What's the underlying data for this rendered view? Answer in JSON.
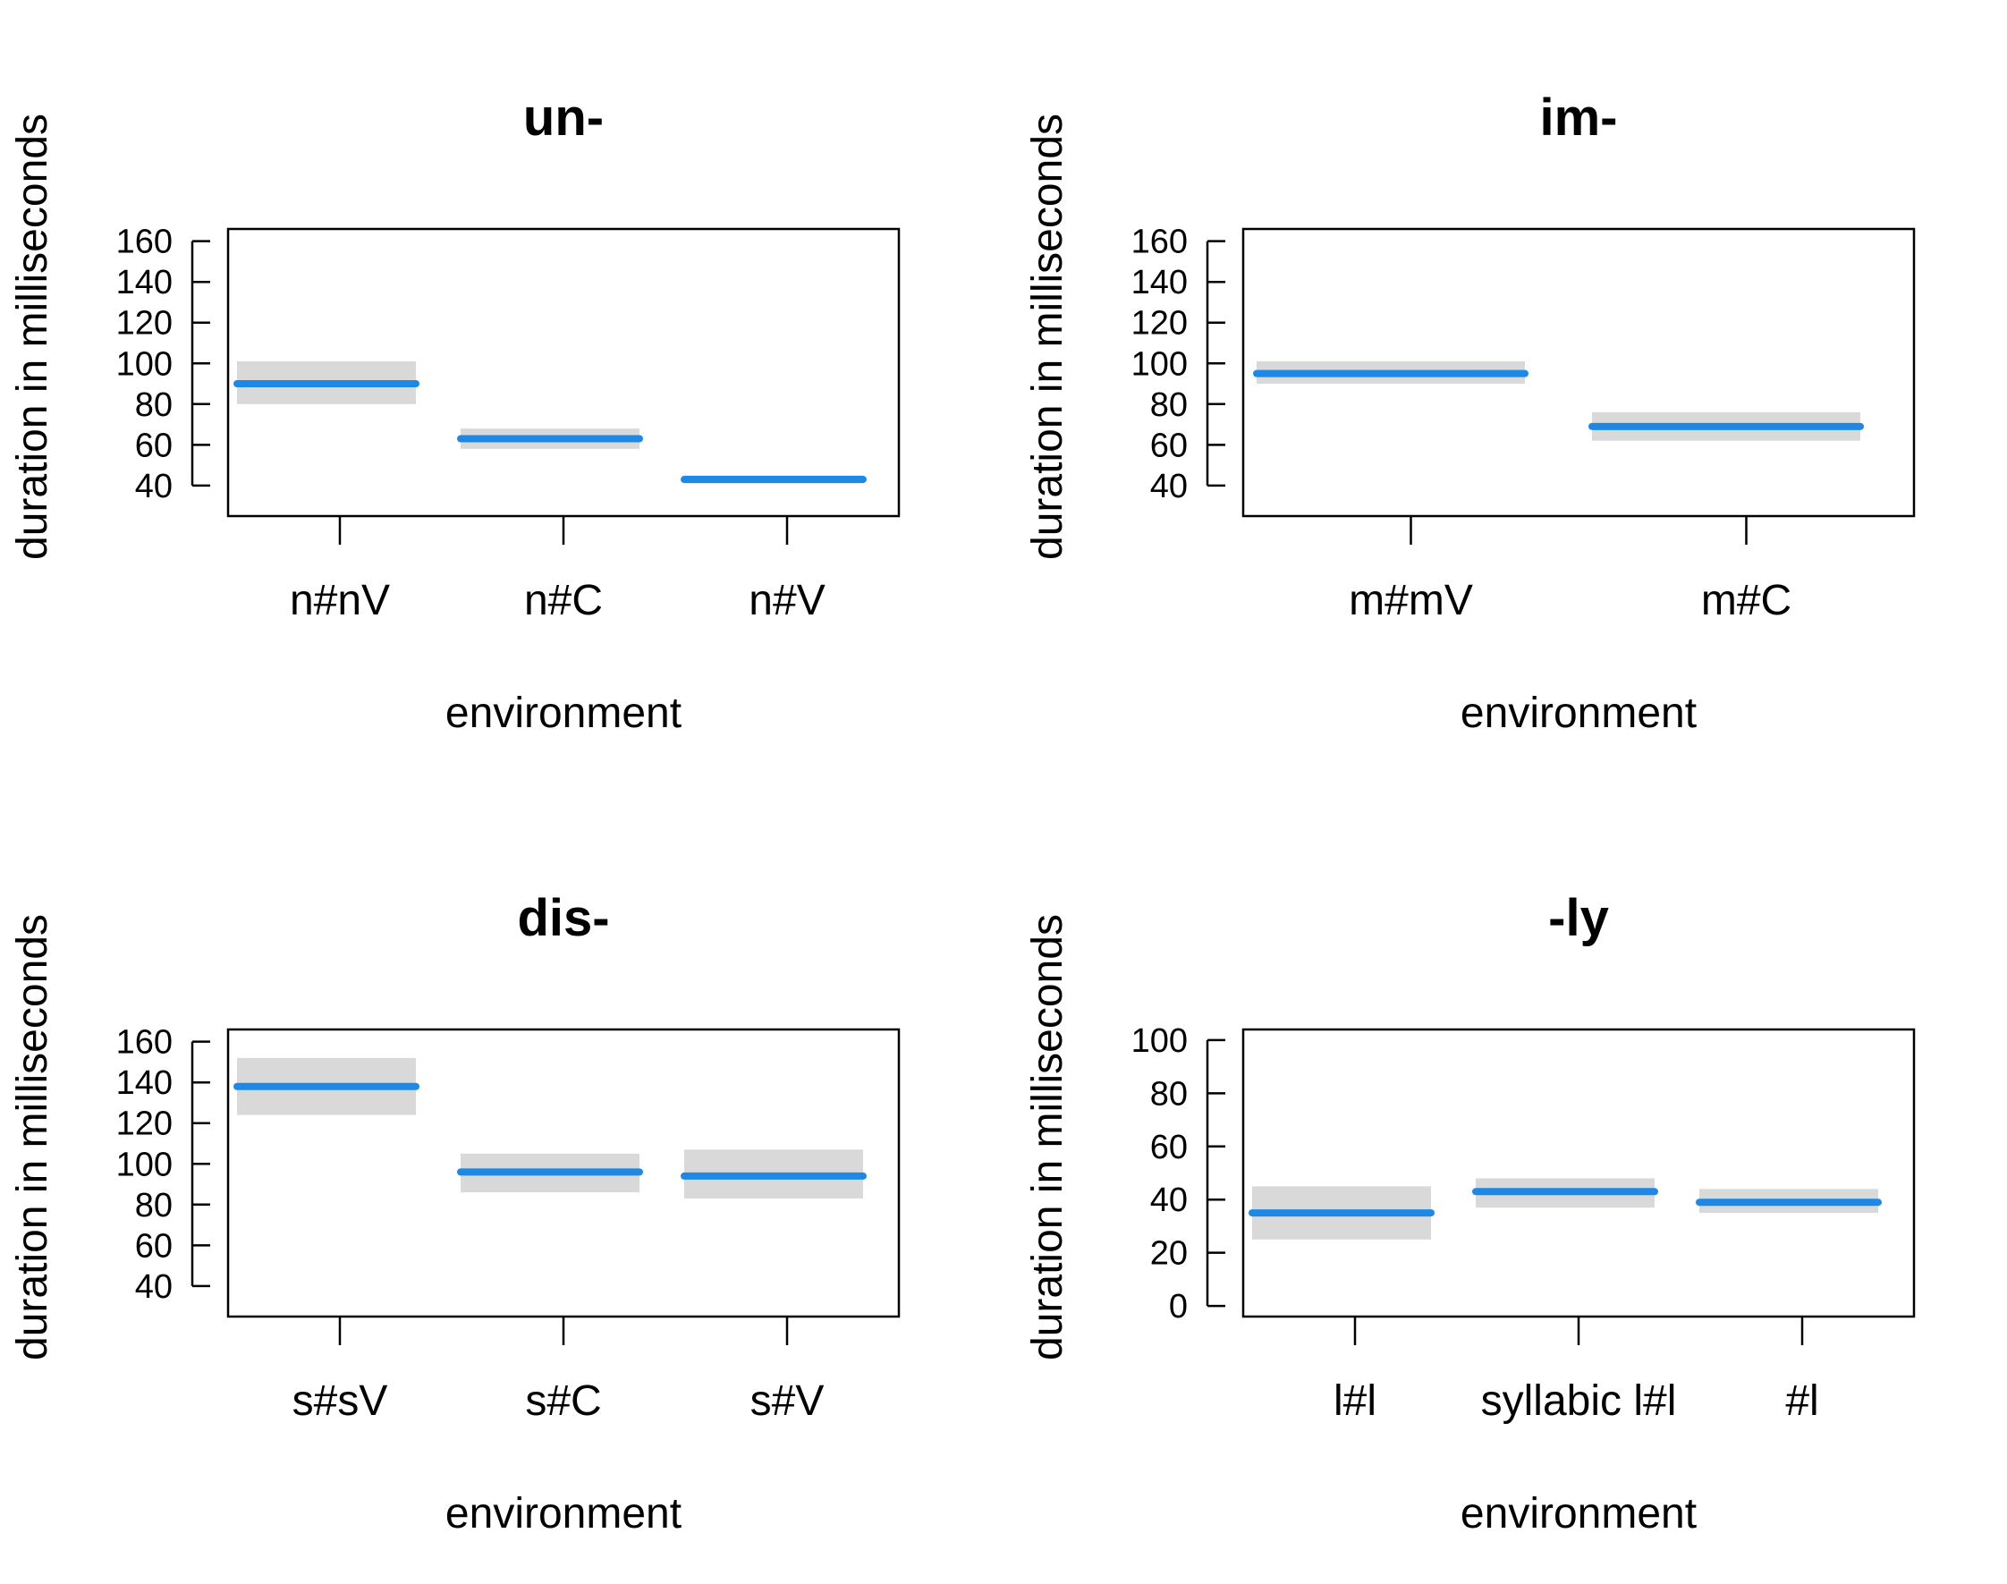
{
  "chart_data": [
    {
      "type": "bar",
      "title": "un-",
      "xlabel": "environment",
      "ylabel": "duration in milliseconds",
      "ylim": [
        25,
        166
      ],
      "yticks": [
        40,
        60,
        80,
        100,
        120,
        140,
        160
      ],
      "categories": [
        "n#nV",
        "n#C",
        "n#V"
      ],
      "values": [
        90,
        63,
        43
      ],
      "ci_lower": [
        80,
        58,
        41
      ],
      "ci_upper": [
        101,
        68,
        45
      ],
      "colors": {
        "estimate": "#1e88e5",
        "ci": "#d9d9d9"
      }
    },
    {
      "type": "bar",
      "title": "im-",
      "xlabel": "environment",
      "ylabel": "duration in milliseconds",
      "ylim": [
        25,
        166
      ],
      "yticks": [
        40,
        60,
        80,
        100,
        120,
        140,
        160
      ],
      "categories": [
        "m#mV",
        "m#C"
      ],
      "values": [
        95,
        69
      ],
      "ci_lower": [
        90,
        62
      ],
      "ci_upper": [
        101,
        76
      ],
      "colors": {
        "estimate": "#1e88e5",
        "ci": "#d9d9d9"
      }
    },
    {
      "type": "bar",
      "title": "dis-",
      "xlabel": "environment",
      "ylabel": "duration in milliseconds",
      "ylim": [
        25,
        166
      ],
      "yticks": [
        40,
        60,
        80,
        100,
        120,
        140,
        160
      ],
      "categories": [
        "s#sV",
        "s#C",
        "s#V"
      ],
      "values": [
        138,
        96,
        94
      ],
      "ci_lower": [
        124,
        86,
        83
      ],
      "ci_upper": [
        152,
        105,
        107
      ],
      "colors": {
        "estimate": "#1e88e5",
        "ci": "#d9d9d9"
      }
    },
    {
      "type": "bar",
      "title": "-ly",
      "xlabel": "environment",
      "ylabel": "duration in milliseconds",
      "ylim": [
        -4,
        104
      ],
      "yticks": [
        0,
        20,
        40,
        60,
        80,
        100
      ],
      "categories": [
        "l#l",
        "syllabic l#l",
        "#l"
      ],
      "values": [
        35,
        43,
        39
      ],
      "ci_lower": [
        25,
        37,
        35
      ],
      "ci_upper": [
        45,
        48,
        44
      ],
      "colors": {
        "estimate": "#1e88e5",
        "ci": "#d9d9d9"
      }
    }
  ]
}
